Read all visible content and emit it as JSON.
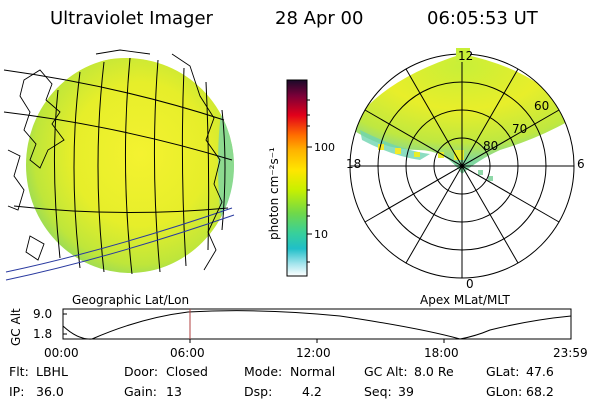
{
  "header": {
    "title": "Ultraviolet Imager",
    "date": "28 Apr 00",
    "time": "06:05:53 UT"
  },
  "left_panel": {
    "label": "Geographic Lat/Lon"
  },
  "right_panel": {
    "label": "Apex MLat/MLT",
    "mlt_labels": {
      "top": "12",
      "left": "18",
      "right": "6",
      "bottom": "0"
    },
    "lat_labels": [
      "60",
      "70",
      "80"
    ]
  },
  "colorbar": {
    "unit_label": "photon cm⁻²s⁻¹",
    "ticks": [
      "100",
      "10"
    ],
    "colors": [
      "#1a0a2a",
      "#7a0038",
      "#e2001a",
      "#ff6c00",
      "#ffb400",
      "#ffe600",
      "#c8f000",
      "#6fd84a",
      "#38d09a",
      "#20bfc8",
      "#a8e6ee",
      "#ffffff"
    ]
  },
  "altitude_plot": {
    "ylabel": "GC Alt",
    "y_ticks": [
      "9.0",
      "1.8"
    ],
    "x_ticks": [
      "00:00",
      "06:00",
      "12:00",
      "18:00",
      "23:59"
    ],
    "current_time": "06:05:53"
  },
  "status": {
    "filter_label": "Flt:",
    "filter_value": "LBHL",
    "door_label": "Door:",
    "door_value": "Closed",
    "mode_label": "Mode:",
    "mode_value": "Normal",
    "gcalt_label": "GC Alt:",
    "gcalt_value": "8.0 Re",
    "glat_label": "GLat:",
    "glat_value": "47.6",
    "ip_label": "IP:",
    "ip_value": "36.0",
    "gain_label": "Gain:",
    "gain_value": "13",
    "dsp_label": "Dsp:",
    "dsp_value": "4.2",
    "seq_label": "Seq:",
    "seq_value": "39",
    "glon_label": "GLon:",
    "glon_value": "68.2"
  }
}
